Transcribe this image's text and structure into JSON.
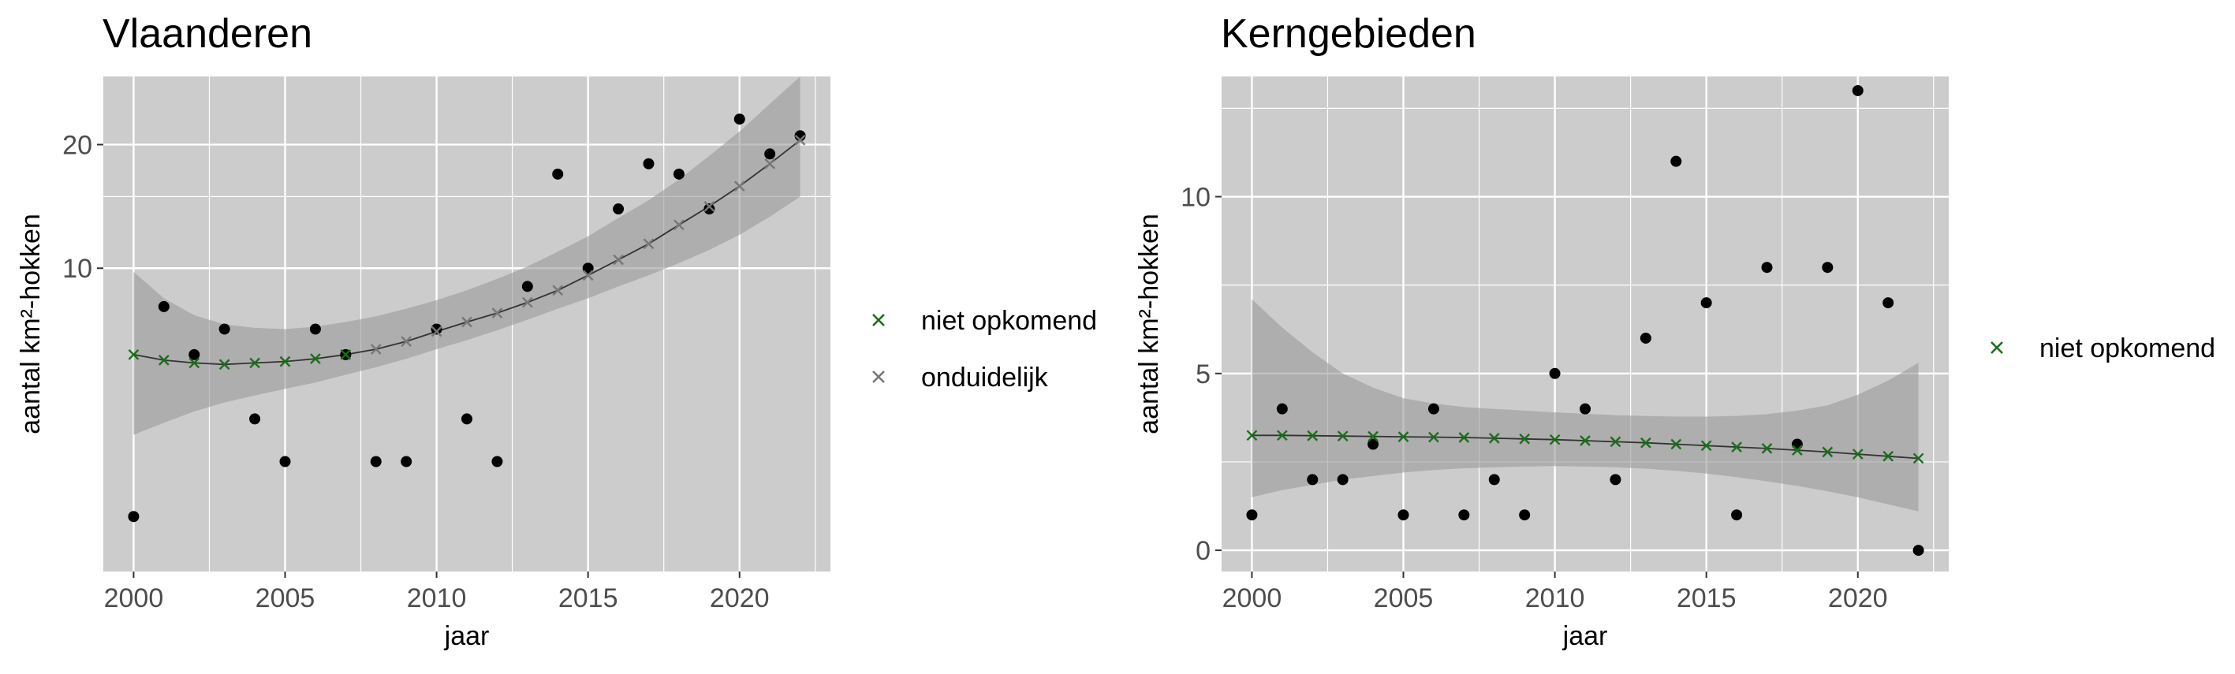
{
  "colors": {
    "panel_bg": "#cccccc",
    "grid": "#ffffff",
    "band": "#999999",
    "trend_line": "#333333",
    "observed_points": "#000000",
    "niet_opkomend": "#1b6e1b",
    "onduidelijk": "#777777"
  },
  "chart_data": [
    {
      "type": "scatter",
      "title": "Vlaanderen",
      "xlabel": "jaar",
      "ylabel": "aantal km²-hokken",
      "xlim": [
        1999,
        2023
      ],
      "ylim": [
        -0.5,
        29
      ],
      "scale": "log1p",
      "x_ticks": [
        2000,
        2005,
        2010,
        2015,
        2020
      ],
      "x_tick_labels": [
        "2000",
        "2005",
        "2010",
        "2015",
        "2020"
      ],
      "y_ticks": [
        10,
        20
      ],
      "y_tick_labels": [
        "10",
        "20"
      ],
      "grid": true,
      "legend_position": "right",
      "legend": [
        {
          "label": "niet opkomend",
          "marker": "x",
          "color": "#1b6e1b"
        },
        {
          "label": "onduidelijk",
          "marker": "x",
          "color": "#777777"
        }
      ],
      "observed": {
        "x": [
          2000,
          2001,
          2002,
          2003,
          2004,
          2005,
          2006,
          2007,
          2008,
          2009,
          2010,
          2011,
          2012,
          2013,
          2014,
          2015,
          2016,
          2017,
          2018,
          2019,
          2020,
          2021,
          2022
        ],
        "y": [
          2,
          8,
          6,
          7,
          4,
          3,
          7,
          6,
          3,
          3,
          7,
          4,
          3,
          9,
          17,
          10,
          14,
          18,
          17,
          14,
          23,
          19,
          21
        ]
      },
      "fitted": {
        "x": [
          2000,
          2001,
          2002,
          2003,
          2004,
          2005,
          2006,
          2007,
          2008,
          2009,
          2010,
          2011,
          2012,
          2013,
          2014,
          2015,
          2016,
          2017,
          2018,
          2019,
          2020,
          2021,
          2022
        ],
        "y": [
          6.0,
          5.8,
          5.7,
          5.65,
          5.7,
          5.75,
          5.85,
          6.0,
          6.2,
          6.5,
          6.9,
          7.3,
          7.7,
          8.2,
          8.8,
          9.6,
          10.5,
          11.5,
          12.8,
          14.2,
          15.9,
          18.0,
          20.5
        ],
        "lower": [
          3.6,
          3.9,
          4.2,
          4.45,
          4.65,
          4.85,
          5.05,
          5.3,
          5.55,
          5.85,
          6.2,
          6.55,
          6.95,
          7.4,
          7.9,
          8.4,
          9.0,
          9.6,
          10.3,
          11.1,
          12.1,
          13.4,
          15.0
        ],
        "upper": [
          9.8,
          8.4,
          7.6,
          7.2,
          7.05,
          7.0,
          7.1,
          7.3,
          7.55,
          7.9,
          8.3,
          8.8,
          9.4,
          10.1,
          11.0,
          12.0,
          13.3,
          14.7,
          16.5,
          18.8,
          21.5,
          25.0,
          29.0
        ],
        "category": [
          "niet opkomend",
          "niet opkomend",
          "niet opkomend",
          "niet opkomend",
          "niet opkomend",
          "niet opkomend",
          "niet opkomend",
          "niet opkomend",
          "onduidelijk",
          "onduidelijk",
          "onduidelijk",
          "onduidelijk",
          "onduidelijk",
          "onduidelijk",
          "onduidelijk",
          "onduidelijk",
          "onduidelijk",
          "onduidelijk",
          "onduidelijk",
          "onduidelijk",
          "onduidelijk",
          "onduidelijk",
          "onduidelijk"
        ]
      }
    },
    {
      "type": "scatter",
      "title": "Kerngebieden",
      "xlabel": "jaar",
      "ylabel": "aantal km²-hokken",
      "xlim": [
        1999,
        2023
      ],
      "ylim": [
        -0.6,
        13.4
      ],
      "scale": "linear",
      "x_ticks": [
        2000,
        2005,
        2010,
        2015,
        2020
      ],
      "x_tick_labels": [
        "2000",
        "2005",
        "2010",
        "2015",
        "2020"
      ],
      "y_ticks": [
        0,
        5,
        10
      ],
      "y_tick_labels": [
        "0",
        "5",
        "10"
      ],
      "grid": true,
      "legend_position": "right",
      "legend": [
        {
          "label": "niet opkomend",
          "marker": "x",
          "color": "#1b6e1b"
        }
      ],
      "observed": {
        "x": [
          2000,
          2001,
          2002,
          2003,
          2004,
          2005,
          2006,
          2007,
          2008,
          2009,
          2010,
          2011,
          2012,
          2013,
          2014,
          2015,
          2016,
          2017,
          2018,
          2019,
          2020,
          2021,
          2022
        ],
        "y": [
          1,
          4,
          2,
          2,
          3,
          1,
          4,
          1,
          2,
          1,
          5,
          4,
          2,
          6,
          11,
          7,
          1,
          8,
          3,
          8,
          13,
          7,
          0
        ]
      },
      "fitted": {
        "x": [
          2000,
          2001,
          2002,
          2003,
          2004,
          2005,
          2006,
          2007,
          2008,
          2009,
          2010,
          2011,
          2012,
          2013,
          2014,
          2015,
          2016,
          2017,
          2018,
          2019,
          2020,
          2021,
          2022
        ],
        "y": [
          3.25,
          3.25,
          3.24,
          3.23,
          3.22,
          3.21,
          3.2,
          3.19,
          3.17,
          3.15,
          3.13,
          3.1,
          3.07,
          3.04,
          3.0,
          2.96,
          2.92,
          2.88,
          2.83,
          2.78,
          2.72,
          2.66,
          2.6
        ],
        "lower": [
          1.5,
          1.7,
          1.85,
          2.0,
          2.1,
          2.2,
          2.27,
          2.32,
          2.35,
          2.37,
          2.38,
          2.37,
          2.35,
          2.31,
          2.25,
          2.17,
          2.07,
          1.95,
          1.82,
          1.67,
          1.5,
          1.3,
          1.1
        ],
        "upper": [
          7.1,
          6.3,
          5.6,
          5.0,
          4.6,
          4.3,
          4.15,
          4.05,
          4.0,
          3.95,
          3.9,
          3.86,
          3.82,
          3.8,
          3.78,
          3.78,
          3.8,
          3.85,
          3.95,
          4.1,
          4.4,
          4.8,
          5.3
        ],
        "category": [
          "niet opkomend",
          "niet opkomend",
          "niet opkomend",
          "niet opkomend",
          "niet opkomend",
          "niet opkomend",
          "niet opkomend",
          "niet opkomend",
          "niet opkomend",
          "niet opkomend",
          "niet opkomend",
          "niet opkomend",
          "niet opkomend",
          "niet opkomend",
          "niet opkomend",
          "niet opkomend",
          "niet opkomend",
          "niet opkomend",
          "niet opkomend",
          "niet opkomend",
          "niet opkomend",
          "niet opkomend",
          "niet opkomend"
        ]
      }
    }
  ]
}
